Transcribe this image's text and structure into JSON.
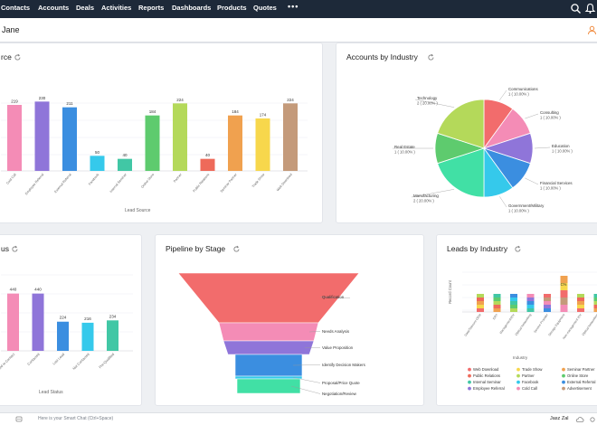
{
  "nav": {
    "items": [
      "Contacts",
      "Accounts",
      "Deals",
      "Activities",
      "Reports",
      "Dashboards",
      "Products",
      "Quotes"
    ],
    "more": "•••"
  },
  "subbar": {
    "title": "Jane"
  },
  "cards": {
    "lead_source": {
      "title": "rce",
      "xlabel": "Lead Source"
    },
    "accounts_by_industry": {
      "title": "Accounts by Industry"
    },
    "lead_status": {
      "title": "us",
      "xlabel": "Lead Status"
    },
    "pipeline": {
      "title": "Pipeline by Stage"
    },
    "leads_by_industry": {
      "title": "Leads by Industry",
      "ylabel": "Record Count",
      "xlabel": "Industry"
    }
  },
  "bottombar": {
    "chat_placeholder": "Here is your Smart Chat (Ctrl+Space)",
    "user": "Jasz Zal"
  },
  "colors": {
    "topbar": "#1d2939",
    "accent": "#f08a3e"
  },
  "chart_data": [
    {
      "id": "lead_source",
      "type": "bar",
      "categories": [
        "Cold Call",
        "Employee Referral",
        "External Referral",
        "Facebook",
        "Internal Seminar",
        "Online Store",
        "Partner",
        "Public Relations",
        "Seminar Partner",
        "Trade Show",
        "Web Download"
      ],
      "values": [
        219,
        230,
        211,
        50,
        40,
        184,
        224,
        40,
        184,
        174,
        224
      ],
      "labels": [
        "219",
        "230",
        "211",
        "50",
        "40",
        "184",
        "224",
        "40",
        "184",
        "174",
        "224"
      ],
      "colors": [
        "#f48cb6",
        "#8f75d9",
        "#3b8ee0",
        "#35c9eb",
        "#41c7a5",
        "#5ecb6e",
        "#b4d95a",
        "#ee6a5a",
        "#f0a14f",
        "#f7d74c",
        "#c49a7a"
      ],
      "xlabel": "Lead Source"
    },
    {
      "id": "accounts_by_industry",
      "type": "pie",
      "slices": [
        {
          "label": "Communications",
          "value": 1,
          "pct": "10.00%",
          "color": "#f26c6c"
        },
        {
          "label": "Consulting",
          "value": 1,
          "pct": "10.00%",
          "color": "#f48cb6"
        },
        {
          "label": "Education",
          "value": 1,
          "pct": "10.00%",
          "color": "#8f75d9"
        },
        {
          "label": "Financial Services",
          "value": 1,
          "pct": "10.00%",
          "color": "#3b8ee0"
        },
        {
          "label": "Government/Military",
          "value": 1,
          "pct": "10.00%",
          "color": "#35c9eb"
        },
        {
          "label": "Manufacturing",
          "value": 2,
          "pct": "20.00%",
          "color": "#41e0a5"
        },
        {
          "label": "Real Estate",
          "value": 1,
          "pct": "10.00%",
          "color": "#5ecb6e"
        },
        {
          "label": "Technology",
          "value": 2,
          "pct": "20.00%",
          "color": "#b4d95a"
        }
      ]
    },
    {
      "id": "lead_status",
      "type": "bar",
      "categories": [
        "Attempted to Contact",
        "Contacted",
        "Lost Lead",
        "Not Contacted",
        "Pre-Qualified"
      ],
      "values": [
        440,
        440,
        224,
        216,
        234
      ],
      "labels": [
        "440",
        "440",
        "224",
        "216",
        "234"
      ],
      "colors": [
        "#f48cb6",
        "#8f75d9",
        "#3b8ee0",
        "#35c9eb",
        "#41c7a5"
      ],
      "xlabel": "Lead Status"
    },
    {
      "id": "pipeline",
      "type": "funnel",
      "stages": [
        {
          "label": "Qualification",
          "color": "#f26c6c"
        },
        {
          "label": "Needs Analysis",
          "color": "#f48cb6"
        },
        {
          "label": "Value Proposition",
          "color": "#8f75d9"
        },
        {
          "label": "Identify Decision Makers",
          "color": "#3b8ee0"
        },
        {
          "label": "Proposal/Price Quote",
          "color": "#35c9eb"
        },
        {
          "label": "Negotiation/Review",
          "color": "#41e0a5"
        }
      ]
    },
    {
      "id": "leads_by_industry",
      "type": "bar",
      "stacked": true,
      "categories": [
        "Data/Telecom OEM",
        "ERP",
        "Management/ISV",
        "Optical Networking",
        "Service Provider",
        "Storage Equipment",
        "Non-management ISV",
        "Optical Networking"
      ],
      "xlabel": "Industry",
      "ylabel": "Record Count",
      "top_label": "C%",
      "legend": [
        {
          "label": "Web Download",
          "color": "#f26c6c"
        },
        {
          "label": "Trade Show",
          "color": "#f7d74c"
        },
        {
          "label": "Seminar Partner",
          "color": "#f0a14f"
        },
        {
          "label": "Public Relations",
          "color": "#ee6a5a"
        },
        {
          "label": "Partner",
          "color": "#b4d95a"
        },
        {
          "label": "Online Store",
          "color": "#5ecb6e"
        },
        {
          "label": "Internal Seminar",
          "color": "#41c7a5"
        },
        {
          "label": "Facebook",
          "color": "#35c9eb"
        },
        {
          "label": "External Referral",
          "color": "#3b8ee0"
        },
        {
          "label": "Employee Referral",
          "color": "#8f75d9"
        },
        {
          "label": "Cold Call",
          "color": "#f48cb6"
        },
        {
          "label": "Advertisement",
          "color": "#c49a7a"
        }
      ]
    }
  ]
}
